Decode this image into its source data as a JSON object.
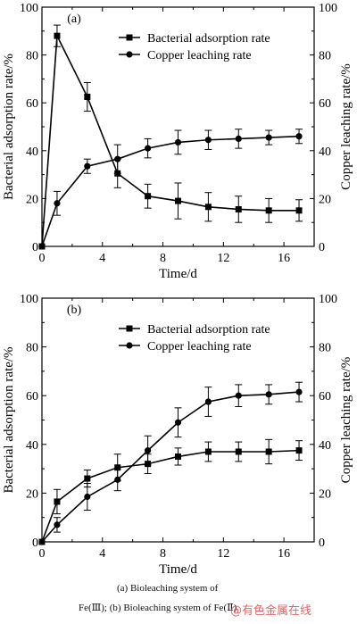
{
  "caption": {
    "line1": "(a) Bioleaching system of",
    "line2": "Fe(Ⅲ); (b) Bioleaching system of Fe(Ⅱ)"
  },
  "watermark": "@有色金属在线",
  "chart_data": [
    {
      "type": "line",
      "panel_label": "(a)",
      "x": [
        0,
        1,
        3,
        5,
        7,
        9,
        11,
        13,
        15,
        17
      ],
      "xlabel": "Time/d",
      "ylabel": "Bacterial adsorption rate/%",
      "ylabel_right": "Copper leaching rate/%",
      "xlim": [
        0,
        18
      ],
      "ylim": [
        0,
        100
      ],
      "ylim_right": [
        0,
        100
      ],
      "xticks": [
        0,
        4,
        8,
        12,
        16
      ],
      "yticks": [
        0,
        20,
        40,
        60,
        80,
        100
      ],
      "legend_position": "top-right",
      "series": [
        {
          "name": "Bacterial adsorption rate",
          "marker": "square",
          "axis": "left",
          "values": [
            0,
            88,
            62.5,
            30.5,
            21,
            19,
            16.5,
            15.5,
            15,
            15
          ],
          "errors": [
            0,
            4.5,
            6,
            6,
            5,
            7.5,
            6,
            5.5,
            5,
            4.5
          ]
        },
        {
          "name": "Copper leaching rate",
          "marker": "circle",
          "axis": "right",
          "values": [
            0,
            18,
            33.5,
            36.5,
            41,
            43.5,
            44.5,
            45,
            45.5,
            46
          ],
          "errors": [
            0,
            5,
            3,
            6,
            4,
            5,
            4,
            4,
            3,
            3
          ]
        }
      ]
    },
    {
      "type": "line",
      "panel_label": "(b)",
      "x": [
        0,
        1,
        3,
        5,
        7,
        9,
        11,
        13,
        15,
        17
      ],
      "xlabel": "Time/d",
      "ylabel": "Bacterial adsorption rate/%",
      "ylabel_right": "Copper leaching rate/%",
      "xlim": [
        0,
        18
      ],
      "ylim": [
        0,
        100
      ],
      "ylim_right": [
        0,
        100
      ],
      "xticks": [
        0,
        4,
        8,
        12,
        16
      ],
      "yticks": [
        0,
        20,
        40,
        60,
        80,
        100
      ],
      "legend_position": "top-right",
      "series": [
        {
          "name": "Bacterial adsorption rate",
          "marker": "square",
          "axis": "left",
          "values": [
            0,
            16.5,
            26,
            30.5,
            32,
            35,
            37,
            37,
            37,
            37.5
          ],
          "errors": [
            0,
            5,
            3.5,
            5.5,
            4,
            3.5,
            4,
            4,
            5,
            4
          ]
        },
        {
          "name": "Copper leaching rate",
          "marker": "circle",
          "axis": "right",
          "values": [
            0,
            7,
            18.5,
            25.5,
            37.5,
            49,
            57.5,
            60,
            60.5,
            61.5
          ],
          "errors": [
            0,
            3,
            5.5,
            4.5,
            6,
            6,
            6,
            4.5,
            4,
            4
          ]
        }
      ]
    }
  ]
}
